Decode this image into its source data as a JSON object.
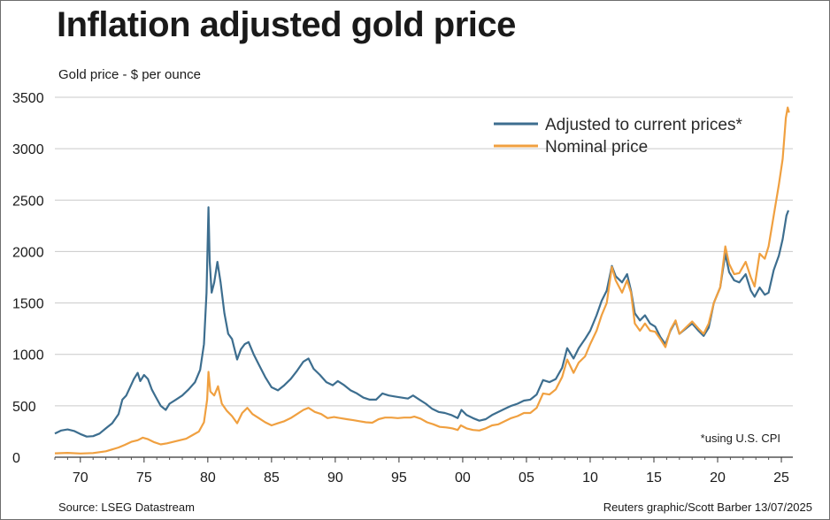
{
  "title": "Inflation adjusted gold price",
  "source": "Source: LSEG Datastream",
  "credit": "Reuters graphic/Scott Barber 13/07/2025",
  "chart_data": {
    "type": "line",
    "title": "Inflation adjusted gold price",
    "ylabel": "Gold price - $ per ounce",
    "xlabel": "",
    "ylim": [
      0,
      3500
    ],
    "xlim": [
      1968,
      2025.9
    ],
    "grid": true,
    "legend_position": "top-right",
    "note": "*using U.S. CPI",
    "y_ticks": [
      "0",
      "500",
      "1000",
      "1500",
      "2000",
      "2500",
      "3000",
      "3500"
    ],
    "x_ticks": [
      "70",
      "75",
      "80",
      "85",
      "90",
      "95",
      "00",
      "05",
      "10",
      "15",
      "20",
      "25"
    ],
    "x_tick_years": [
      1970,
      1975,
      1980,
      1985,
      1990,
      1995,
      2000,
      2005,
      2010,
      2015,
      2020,
      2025
    ],
    "series": [
      {
        "name": "Adjusted to current prices*",
        "color": "#3d6e8f",
        "points": [
          [
            1968.0,
            230
          ],
          [
            1968.5,
            260
          ],
          [
            1969.0,
            270
          ],
          [
            1969.5,
            255
          ],
          [
            1970.0,
            225
          ],
          [
            1970.5,
            200
          ],
          [
            1971.0,
            205
          ],
          [
            1971.5,
            230
          ],
          [
            1972.0,
            280
          ],
          [
            1972.5,
            330
          ],
          [
            1973.0,
            420
          ],
          [
            1973.3,
            560
          ],
          [
            1973.6,
            600
          ],
          [
            1973.9,
            680
          ],
          [
            1974.2,
            760
          ],
          [
            1974.5,
            820
          ],
          [
            1974.7,
            740
          ],
          [
            1975.0,
            800
          ],
          [
            1975.3,
            760
          ],
          [
            1975.6,
            660
          ],
          [
            1975.9,
            590
          ],
          [
            1976.3,
            500
          ],
          [
            1976.7,
            460
          ],
          [
            1977.0,
            520
          ],
          [
            1977.5,
            560
          ],
          [
            1978.0,
            600
          ],
          [
            1978.5,
            660
          ],
          [
            1979.0,
            730
          ],
          [
            1979.4,
            850
          ],
          [
            1979.7,
            1100
          ],
          [
            1979.9,
            1600
          ],
          [
            1980.05,
            2430
          ],
          [
            1980.15,
            1900
          ],
          [
            1980.3,
            1600
          ],
          [
            1980.5,
            1700
          ],
          [
            1980.75,
            1900
          ],
          [
            1981.0,
            1700
          ],
          [
            1981.3,
            1400
          ],
          [
            1981.6,
            1200
          ],
          [
            1981.9,
            1150
          ],
          [
            1982.3,
            950
          ],
          [
            1982.6,
            1050
          ],
          [
            1982.9,
            1100
          ],
          [
            1983.2,
            1120
          ],
          [
            1983.6,
            1000
          ],
          [
            1984.0,
            900
          ],
          [
            1984.5,
            780
          ],
          [
            1985.0,
            680
          ],
          [
            1985.5,
            650
          ],
          [
            1986.0,
            700
          ],
          [
            1986.5,
            760
          ],
          [
            1987.0,
            840
          ],
          [
            1987.5,
            930
          ],
          [
            1987.9,
            960
          ],
          [
            1988.3,
            860
          ],
          [
            1988.8,
            800
          ],
          [
            1989.3,
            730
          ],
          [
            1989.8,
            700
          ],
          [
            1990.2,
            740
          ],
          [
            1990.7,
            700
          ],
          [
            1991.2,
            650
          ],
          [
            1991.7,
            620
          ],
          [
            1992.2,
            580
          ],
          [
            1992.7,
            560
          ],
          [
            1993.2,
            560
          ],
          [
            1993.7,
            620
          ],
          [
            1994.2,
            600
          ],
          [
            1994.7,
            590
          ],
          [
            1995.2,
            580
          ],
          [
            1995.7,
            570
          ],
          [
            1996.1,
            600
          ],
          [
            1996.6,
            560
          ],
          [
            1997.1,
            520
          ],
          [
            1997.6,
            470
          ],
          [
            1998.1,
            440
          ],
          [
            1998.6,
            430
          ],
          [
            1999.1,
            410
          ],
          [
            1999.6,
            380
          ],
          [
            1999.9,
            460
          ],
          [
            2000.3,
            410
          ],
          [
            2000.8,
            380
          ],
          [
            2001.3,
            355
          ],
          [
            2001.8,
            370
          ],
          [
            2002.3,
            410
          ],
          [
            2002.8,
            440
          ],
          [
            2003.3,
            470
          ],
          [
            2003.8,
            500
          ],
          [
            2004.3,
            520
          ],
          [
            2004.8,
            550
          ],
          [
            2005.3,
            560
          ],
          [
            2005.8,
            610
          ],
          [
            2006.3,
            750
          ],
          [
            2006.8,
            730
          ],
          [
            2007.3,
            760
          ],
          [
            2007.8,
            870
          ],
          [
            2008.2,
            1060
          ],
          [
            2008.7,
            960
          ],
          [
            2009.1,
            1060
          ],
          [
            2009.6,
            1150
          ],
          [
            2010.0,
            1230
          ],
          [
            2010.5,
            1380
          ],
          [
            2010.9,
            1520
          ],
          [
            2011.3,
            1620
          ],
          [
            2011.7,
            1860
          ],
          [
            2012.0,
            1760
          ],
          [
            2012.5,
            1700
          ],
          [
            2012.9,
            1780
          ],
          [
            2013.2,
            1620
          ],
          [
            2013.5,
            1400
          ],
          [
            2013.9,
            1330
          ],
          [
            2014.3,
            1380
          ],
          [
            2014.7,
            1300
          ],
          [
            2015.1,
            1270
          ],
          [
            2015.5,
            1170
          ],
          [
            2015.9,
            1100
          ],
          [
            2016.3,
            1230
          ],
          [
            2016.7,
            1320
          ],
          [
            2017.0,
            1200
          ],
          [
            2017.5,
            1250
          ],
          [
            2018.0,
            1300
          ],
          [
            2018.5,
            1230
          ],
          [
            2018.9,
            1180
          ],
          [
            2019.3,
            1260
          ],
          [
            2019.7,
            1500
          ],
          [
            2020.2,
            1650
          ],
          [
            2020.6,
            1980
          ],
          [
            2020.9,
            1800
          ],
          [
            2021.3,
            1720
          ],
          [
            2021.7,
            1700
          ],
          [
            2022.2,
            1780
          ],
          [
            2022.6,
            1620
          ],
          [
            2022.9,
            1560
          ],
          [
            2023.3,
            1650
          ],
          [
            2023.7,
            1580
          ],
          [
            2024.0,
            1600
          ],
          [
            2024.4,
            1820
          ],
          [
            2024.8,
            1960
          ],
          [
            2025.1,
            2120
          ],
          [
            2025.4,
            2350
          ],
          [
            2025.55,
            2400
          ]
        ]
      },
      {
        "name": "Nominal price",
        "color": "#f0a040",
        "points": [
          [
            1968.0,
            38
          ],
          [
            1969.0,
            42
          ],
          [
            1970.0,
            36
          ],
          [
            1971.0,
            40
          ],
          [
            1972.0,
            58
          ],
          [
            1973.0,
            95
          ],
          [
            1973.5,
            120
          ],
          [
            1974.0,
            150
          ],
          [
            1974.5,
            165
          ],
          [
            1974.9,
            190
          ],
          [
            1975.3,
            175
          ],
          [
            1975.8,
            145
          ],
          [
            1976.3,
            125
          ],
          [
            1976.8,
            135
          ],
          [
            1977.3,
            150
          ],
          [
            1977.8,
            165
          ],
          [
            1978.3,
            180
          ],
          [
            1978.8,
            215
          ],
          [
            1979.3,
            250
          ],
          [
            1979.7,
            340
          ],
          [
            1979.95,
            560
          ],
          [
            1980.05,
            830
          ],
          [
            1980.2,
            640
          ],
          [
            1980.5,
            600
          ],
          [
            1980.8,
            690
          ],
          [
            1981.1,
            520
          ],
          [
            1981.5,
            450
          ],
          [
            1981.9,
            400
          ],
          [
            1982.3,
            330
          ],
          [
            1982.7,
            430
          ],
          [
            1983.1,
            480
          ],
          [
            1983.5,
            420
          ],
          [
            1984.0,
            380
          ],
          [
            1984.5,
            340
          ],
          [
            1985.0,
            310
          ],
          [
            1985.5,
            330
          ],
          [
            1986.0,
            350
          ],
          [
            1986.5,
            380
          ],
          [
            1987.0,
            420
          ],
          [
            1987.5,
            460
          ],
          [
            1987.9,
            480
          ],
          [
            1988.4,
            440
          ],
          [
            1988.9,
            420
          ],
          [
            1989.4,
            380
          ],
          [
            1989.9,
            390
          ],
          [
            1990.4,
            380
          ],
          [
            1990.9,
            370
          ],
          [
            1991.4,
            360
          ],
          [
            1991.9,
            350
          ],
          [
            1992.4,
            340
          ],
          [
            1992.9,
            335
          ],
          [
            1993.4,
            370
          ],
          [
            1993.9,
            385
          ],
          [
            1994.4,
            385
          ],
          [
            1994.9,
            380
          ],
          [
            1995.4,
            385
          ],
          [
            1995.9,
            385
          ],
          [
            1996.2,
            395
          ],
          [
            1996.7,
            375
          ],
          [
            1997.2,
            340
          ],
          [
            1997.7,
            320
          ],
          [
            1998.2,
            295
          ],
          [
            1998.7,
            290
          ],
          [
            1999.2,
            280
          ],
          [
            1999.6,
            265
          ],
          [
            1999.85,
            310
          ],
          [
            2000.3,
            280
          ],
          [
            2000.8,
            265
          ],
          [
            2001.3,
            260
          ],
          [
            2001.8,
            280
          ],
          [
            2002.3,
            310
          ],
          [
            2002.8,
            320
          ],
          [
            2003.3,
            350
          ],
          [
            2003.8,
            380
          ],
          [
            2004.3,
            400
          ],
          [
            2004.8,
            430
          ],
          [
            2005.3,
            430
          ],
          [
            2005.8,
            480
          ],
          [
            2006.3,
            620
          ],
          [
            2006.8,
            610
          ],
          [
            2007.3,
            660
          ],
          [
            2007.8,
            780
          ],
          [
            2008.2,
            950
          ],
          [
            2008.7,
            820
          ],
          [
            2009.1,
            920
          ],
          [
            2009.6,
            980
          ],
          [
            2010.0,
            1100
          ],
          [
            2010.5,
            1230
          ],
          [
            2010.9,
            1380
          ],
          [
            2011.3,
            1500
          ],
          [
            2011.7,
            1850
          ],
          [
            2012.0,
            1720
          ],
          [
            2012.5,
            1600
          ],
          [
            2012.9,
            1720
          ],
          [
            2013.2,
            1600
          ],
          [
            2013.5,
            1300
          ],
          [
            2013.9,
            1230
          ],
          [
            2014.3,
            1300
          ],
          [
            2014.7,
            1230
          ],
          [
            2015.1,
            1220
          ],
          [
            2015.5,
            1150
          ],
          [
            2015.9,
            1070
          ],
          [
            2016.3,
            1240
          ],
          [
            2016.7,
            1330
          ],
          [
            2017.0,
            1200
          ],
          [
            2017.5,
            1260
          ],
          [
            2018.0,
            1320
          ],
          [
            2018.5,
            1250
          ],
          [
            2018.9,
            1200
          ],
          [
            2019.3,
            1300
          ],
          [
            2019.7,
            1500
          ],
          [
            2020.2,
            1650
          ],
          [
            2020.6,
            2050
          ],
          [
            2020.9,
            1880
          ],
          [
            2021.3,
            1780
          ],
          [
            2021.7,
            1790
          ],
          [
            2022.2,
            1900
          ],
          [
            2022.6,
            1750
          ],
          [
            2022.9,
            1660
          ],
          [
            2023.3,
            1980
          ],
          [
            2023.7,
            1930
          ],
          [
            2024.0,
            2050
          ],
          [
            2024.4,
            2350
          ],
          [
            2024.8,
            2650
          ],
          [
            2025.1,
            2900
          ],
          [
            2025.35,
            3300
          ],
          [
            2025.5,
            3400
          ],
          [
            2025.6,
            3350
          ]
        ]
      }
    ]
  }
}
